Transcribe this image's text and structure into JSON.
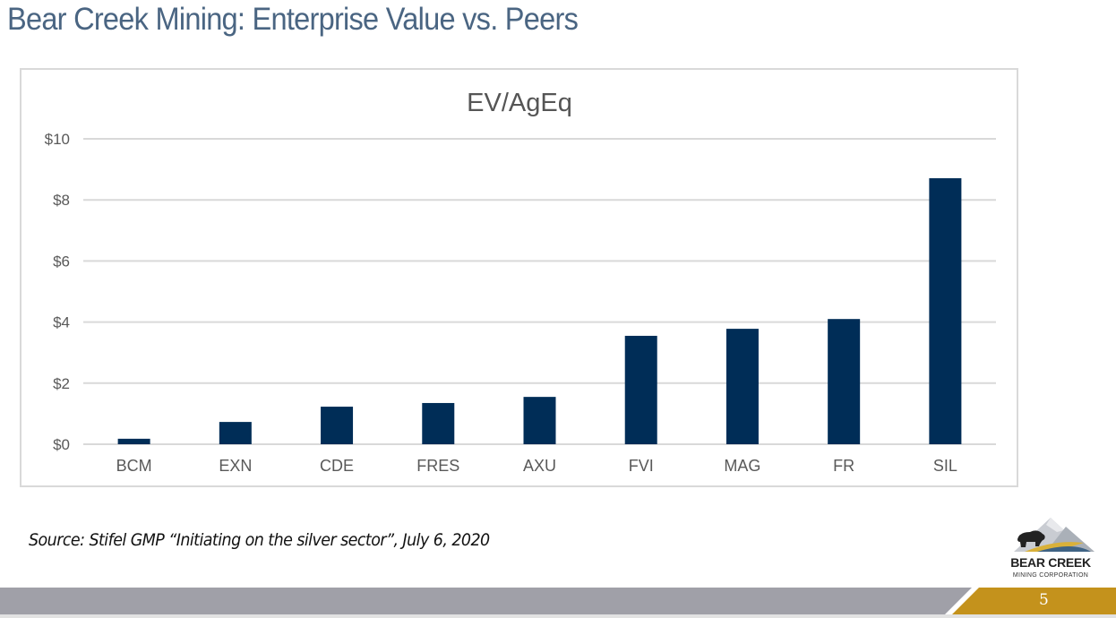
{
  "slide": {
    "title": "Bear Creek Mining: Enterprise Value vs. Peers",
    "source": "Source: Stifel GMP “Initiating on the silver sector”, July 6, 2020",
    "page_number": "5",
    "logo": {
      "name": "BEAR CREEK",
      "subtitle": "MINING CORPORATION"
    }
  },
  "colors": {
    "bar": "#002d57",
    "title": "#4a6582",
    "gold": "#c4921c",
    "footer_gray": "#a0a0a8"
  },
  "chart_data": {
    "type": "bar",
    "title": "EV/AgEq",
    "xlabel": "",
    "ylabel": "",
    "categories": [
      "BCM",
      "EXN",
      "CDE",
      "FRES",
      "AXU",
      "FVI",
      "MAG",
      "FR",
      "SIL"
    ],
    "values": [
      0.18,
      0.73,
      1.23,
      1.35,
      1.55,
      3.55,
      3.78,
      4.1,
      8.71
    ],
    "ylim": [
      0,
      10
    ],
    "yticks": [
      0,
      2,
      4,
      6,
      8,
      10
    ],
    "ytick_labels": [
      "$0",
      "$2",
      "$4",
      "$6",
      "$8",
      "$10"
    ],
    "grid": true,
    "legend": "none"
  }
}
